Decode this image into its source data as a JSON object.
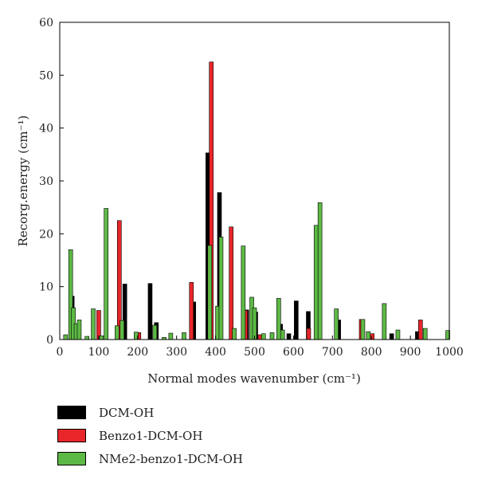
{
  "chart_data": {
    "type": "bar",
    "xlabel": "Normal modes wavenumber (cm⁻¹)",
    "ylabel": "Recorg.energy (cm⁻¹)",
    "xlim": [
      0,
      1000
    ],
    "ylim": [
      0,
      60
    ],
    "xticks": [
      0,
      100,
      200,
      300,
      400,
      500,
      600,
      700,
      800,
      900,
      1000
    ],
    "yticks": [
      0,
      10,
      20,
      30,
      40,
      50,
      60
    ],
    "grid": false,
    "legend_position": "below",
    "series": [
      {
        "name": "DCM-OH",
        "color": "#000000",
        "points": [
          {
            "x": 32,
            "y": 8.2
          },
          {
            "x": 167,
            "y": 10.5
          },
          {
            "x": 232,
            "y": 10.6
          },
          {
            "x": 248,
            "y": 3.2
          },
          {
            "x": 344,
            "y": 7.1
          },
          {
            "x": 380,
            "y": 35.3
          },
          {
            "x": 410,
            "y": 27.8
          },
          {
            "x": 480,
            "y": 5.6
          },
          {
            "x": 503,
            "y": 5.2
          },
          {
            "x": 567,
            "y": 2.9
          },
          {
            "x": 588,
            "y": 1.1
          },
          {
            "x": 607,
            "y": 7.3
          },
          {
            "x": 638,
            "y": 5.3
          },
          {
            "x": 716,
            "y": 3.7
          },
          {
            "x": 852,
            "y": 1.1
          },
          {
            "x": 918,
            "y": 1.5
          }
        ]
      },
      {
        "name": "Benzo1-DCM-OH",
        "color": "#e8262a",
        "points": [
          {
            "x": 100,
            "y": 5.5
          },
          {
            "x": 153,
            "y": 22.5
          },
          {
            "x": 203,
            "y": 1.3
          },
          {
            "x": 338,
            "y": 10.8
          },
          {
            "x": 389,
            "y": 52.5
          },
          {
            "x": 440,
            "y": 21.3
          },
          {
            "x": 477,
            "y": 5.5
          },
          {
            "x": 514,
            "y": 0.9
          },
          {
            "x": 639,
            "y": 2.1
          },
          {
            "x": 662,
            "y": 9.9
          },
          {
            "x": 774,
            "y": 3.8
          },
          {
            "x": 802,
            "y": 1.1
          },
          {
            "x": 926,
            "y": 3.7
          }
        ]
      },
      {
        "name": "NMe2-benzo1-DCM-OH",
        "color": "#5db945",
        "points": [
          {
            "x": 15,
            "y": 0.9
          },
          {
            "x": 28,
            "y": 17.0
          },
          {
            "x": 35,
            "y": 6.0
          },
          {
            "x": 42,
            "y": 3.0
          },
          {
            "x": 50,
            "y": 3.7
          },
          {
            "x": 70,
            "y": 0.6
          },
          {
            "x": 86,
            "y": 5.8
          },
          {
            "x": 107,
            "y": 0.7
          },
          {
            "x": 119,
            "y": 24.8
          },
          {
            "x": 147,
            "y": 2.6
          },
          {
            "x": 160,
            "y": 3.6
          },
          {
            "x": 196,
            "y": 1.4
          },
          {
            "x": 244,
            "y": 2.7
          },
          {
            "x": 268,
            "y": 0.4
          },
          {
            "x": 285,
            "y": 1.2
          },
          {
            "x": 319,
            "y": 1.3
          },
          {
            "x": 385,
            "y": 17.8
          },
          {
            "x": 405,
            "y": 6.3
          },
          {
            "x": 414,
            "y": 19.4
          },
          {
            "x": 448,
            "y": 2.1
          },
          {
            "x": 471,
            "y": 17.7
          },
          {
            "x": 493,
            "y": 8.0
          },
          {
            "x": 500,
            "y": 6.0
          },
          {
            "x": 523,
            "y": 1.1
          },
          {
            "x": 545,
            "y": 1.3
          },
          {
            "x": 562,
            "y": 7.8
          },
          {
            "x": 572,
            "y": 1.8
          },
          {
            "x": 658,
            "y": 21.6
          },
          {
            "x": 668,
            "y": 25.9
          },
          {
            "x": 710,
            "y": 5.8
          },
          {
            "x": 778,
            "y": 3.8
          },
          {
            "x": 792,
            "y": 1.5
          },
          {
            "x": 833,
            "y": 6.8
          },
          {
            "x": 868,
            "y": 1.8
          },
          {
            "x": 938,
            "y": 2.1
          },
          {
            "x": 996,
            "y": 1.7
          }
        ]
      }
    ]
  }
}
